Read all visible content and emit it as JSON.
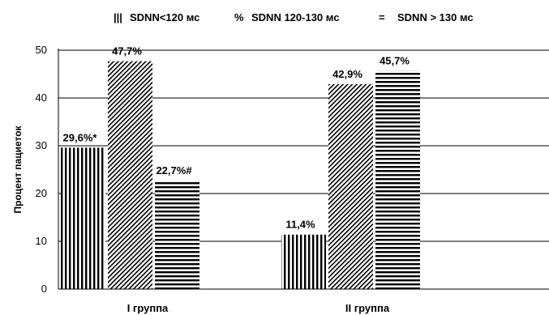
{
  "chart_data": {
    "type": "bar",
    "categories": [
      "I группа",
      "II группа"
    ],
    "ylabel": "Процент пациеток",
    "ylim": [
      0,
      50
    ],
    "yticks": [
      0,
      10,
      20,
      30,
      40,
      50
    ],
    "grid": true,
    "legend_position": "top",
    "series": [
      {
        "name": "SDNN<120 мс",
        "legend_marker": "|||",
        "pattern": "vertical",
        "values": [
          29.6,
          11.4
        ],
        "labels": [
          "29,6%*",
          "11,4%"
        ]
      },
      {
        "name": "SDNN 120-130 мс",
        "legend_marker": "%",
        "pattern": "diagonal",
        "values": [
          47.7,
          42.9
        ],
        "labels": [
          "47,7%",
          "42,9%"
        ]
      },
      {
        "name": "SDNN > 130 мс",
        "legend_marker": "=",
        "pattern": "horizontal",
        "values": [
          22.7,
          45.7
        ],
        "labels": [
          "22,7%#",
          "45,7%"
        ]
      }
    ]
  }
}
